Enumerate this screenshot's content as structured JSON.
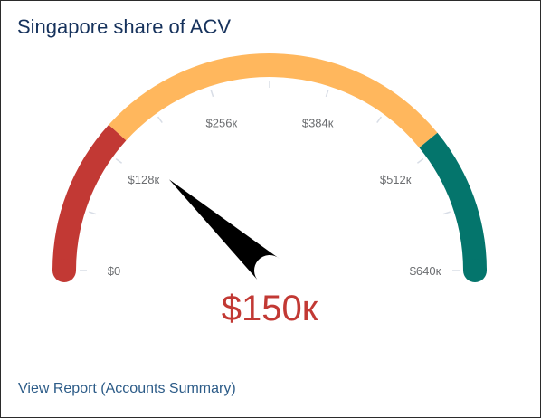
{
  "card": {
    "title": "Singapore share of ACV",
    "footer_link": "View Report (Accounts Summary)"
  },
  "chart_data": {
    "type": "gauge",
    "title": "Singapore share of ACV",
    "min": 0,
    "max": 640000,
    "value": 150000,
    "value_label": "$150к",
    "tick_values": [
      0,
      128000,
      256000,
      384000,
      512000,
      640000
    ],
    "tick_labels": [
      "$0",
      "$128к",
      "$256к",
      "$384к",
      "$512к",
      "$640к"
    ],
    "minor_tick_values": [
      64000,
      192000,
      320000,
      448000,
      576000
    ],
    "bands": [
      {
        "from": 0,
        "to": 150000,
        "color": "#c23934"
      },
      {
        "from": 150000,
        "to": 500000,
        "color": "#ffb75d"
      },
      {
        "from": 500000,
        "to": 640000,
        "color": "#04756c"
      }
    ],
    "needle_color": "#000000",
    "value_color": "#c23934"
  }
}
